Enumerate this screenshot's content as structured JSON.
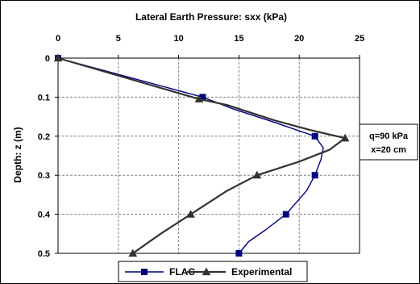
{
  "chart_data": {
    "type": "line",
    "title": "",
    "xlabel": "Lateral Earth Pressure: sxx (kPa)",
    "ylabel": "Depth: z (m)",
    "xlim": [
      0,
      25
    ],
    "ylim": [
      0,
      0.5
    ],
    "x_axis_position": "top",
    "y_axis_inverted": true,
    "grid": true,
    "x_ticks": [
      0,
      5,
      10,
      15,
      20,
      25
    ],
    "x_tick_labels": [
      "0",
      "5",
      "10",
      "15",
      "20",
      "25"
    ],
    "y_ticks": [
      0,
      0.1,
      0.2,
      0.3,
      0.4,
      0.5
    ],
    "y_tick_labels": [
      "0",
      "0.1",
      "0.2",
      "0.3",
      "0.4",
      "0.5"
    ],
    "legend_position": "bottom",
    "series": [
      {
        "name": "FLAC",
        "color": "#000080",
        "marker": "square",
        "points": [
          {
            "x": 0,
            "y": 0
          },
          {
            "x": 12,
            "y": 0.1
          },
          {
            "x": 21.3,
            "y": 0.2
          },
          {
            "x": 21.3,
            "y": 0.3
          },
          {
            "x": 18.9,
            "y": 0.4
          },
          {
            "x": 15,
            "y": 0.5
          }
        ],
        "curve": [
          [
            0,
            0
          ],
          [
            12,
            0.1
          ],
          [
            14.5,
            0.13
          ],
          [
            17.5,
            0.16
          ],
          [
            21.3,
            0.2
          ],
          [
            22,
            0.23
          ],
          [
            21.8,
            0.26
          ],
          [
            21.3,
            0.3
          ],
          [
            20.6,
            0.34
          ],
          [
            18.9,
            0.4
          ],
          [
            17.2,
            0.44
          ],
          [
            15.8,
            0.47
          ],
          [
            15,
            0.5
          ]
        ]
      },
      {
        "name": "Experimental",
        "color": "#333333",
        "marker": "triangle",
        "points": [
          {
            "x": 0,
            "y": 0
          },
          {
            "x": 11.7,
            "y": 0.105
          },
          {
            "x": 23.8,
            "y": 0.205
          },
          {
            "x": 16.5,
            "y": 0.3
          },
          {
            "x": 11,
            "y": 0.4
          },
          {
            "x": 6.2,
            "y": 0.5
          }
        ],
        "curve": [
          [
            0,
            0
          ],
          [
            11.7,
            0.105
          ],
          [
            14,
            0.12
          ],
          [
            18,
            0.16
          ],
          [
            21,
            0.185
          ],
          [
            23.8,
            0.205
          ],
          [
            22.5,
            0.235
          ],
          [
            20,
            0.265
          ],
          [
            16.5,
            0.3
          ],
          [
            14,
            0.34
          ],
          [
            11,
            0.4
          ],
          [
            8.5,
            0.45
          ],
          [
            6.2,
            0.5
          ]
        ]
      }
    ],
    "annotation": {
      "lines": [
        "q=90 kPa",
        "x=20 cm"
      ]
    }
  }
}
